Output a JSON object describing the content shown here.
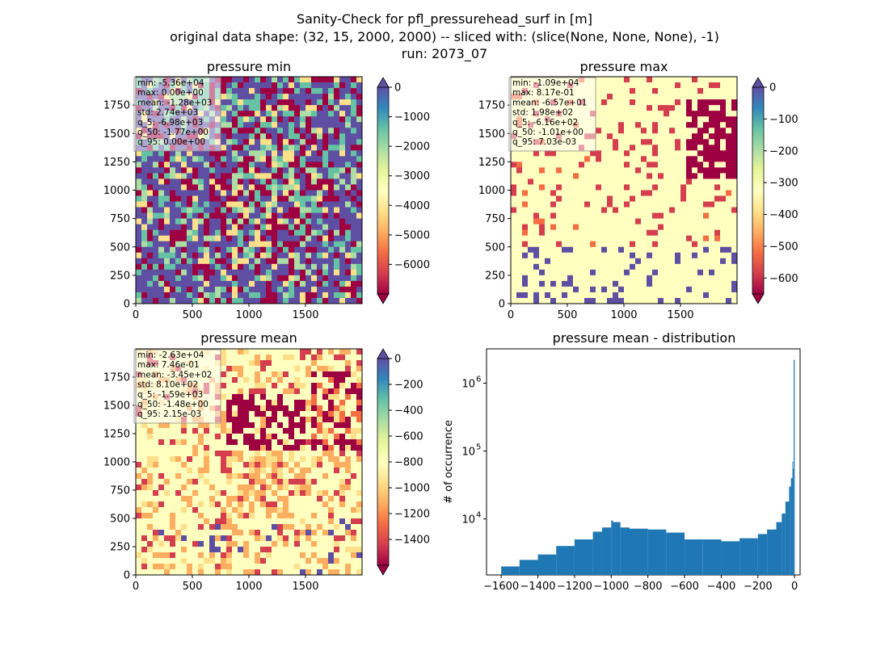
{
  "figure": {
    "suptitle_lines": [
      "Sanity-Check for pfl_pressurehead_surf in [m]",
      "original data shape: (32, 15, 2000, 2000) -- sliced with: (slice(None, None, None), -1)",
      "run: 2073_07"
    ]
  },
  "colors": {
    "spectral": [
      "#9e0142",
      "#d53e4f",
      "#f46d43",
      "#fdae61",
      "#fee08b",
      "#ffffbf",
      "#e6f598",
      "#abdda4",
      "#66c2a5",
      "#3288bd",
      "#5e4fa2"
    ],
    "hist_bar": "#1f77b4"
  },
  "chart_data": [
    {
      "type": "heatmap",
      "title": "pressure min",
      "xticks": [
        "0",
        "500",
        "1000",
        "1500"
      ],
      "yticks": [
        "0",
        "250",
        "500",
        "750",
        "1000",
        "1250",
        "1500",
        "1750"
      ],
      "xlim": [
        0,
        2000
      ],
      "ylim": [
        0,
        2000
      ],
      "colorbar": {
        "vmin": -7000,
        "vmax": 0,
        "extend": "both",
        "ticks": [
          "0",
          "−1000",
          "−2000",
          "−3000",
          "−4000",
          "−5000",
          "−6000"
        ],
        "tick_values": [
          0,
          -1000,
          -2000,
          -3000,
          -4000,
          -5000,
          -6000
        ]
      },
      "stats": [
        "min: -5.36e+04",
        "max: 0.00e+00",
        "mean: -1.28e+03",
        "std: 2.74e+03",
        "q_5: -6.98e+03",
        "q_50: -1.77e+00",
        "q_95: 0.00e+00"
      ]
    },
    {
      "type": "heatmap",
      "title": "pressure max",
      "xticks": [
        "0",
        "500",
        "1000",
        "1500"
      ],
      "yticks": [
        "0",
        "250",
        "500",
        "750",
        "1000",
        "1250",
        "1500",
        "1750"
      ],
      "xlim": [
        0,
        2000
      ],
      "ylim": [
        0,
        2000
      ],
      "colorbar": {
        "vmin": -650,
        "vmax": 0,
        "extend": "both",
        "ticks": [
          "0",
          "−100",
          "−200",
          "−300",
          "−400",
          "−500",
          "−600"
        ],
        "tick_values": [
          0,
          -100,
          -200,
          -300,
          -400,
          -500,
          -600
        ]
      },
      "stats": [
        "min: -1.09e+04",
        "max: 8.17e-01",
        "mean: -6.57e+01",
        "std: 1.98e+02",
        "q_5: -6.16e+02",
        "q_50: -1.01e+00",
        "q_95: 7.03e-03"
      ]
    },
    {
      "type": "heatmap",
      "title": "pressure mean",
      "xticks": [
        "0",
        "500",
        "1000",
        "1500"
      ],
      "yticks": [
        "0",
        "250",
        "500",
        "750",
        "1000",
        "1250",
        "1500",
        "1750"
      ],
      "xlim": [
        0,
        2000
      ],
      "ylim": [
        0,
        2000
      ],
      "colorbar": {
        "vmin": -1600,
        "vmax": 0,
        "extend": "both",
        "ticks": [
          "0",
          "−200",
          "−400",
          "−600",
          "−800",
          "−1000",
          "−1200",
          "−1400"
        ],
        "tick_values": [
          0,
          -200,
          -400,
          -600,
          -800,
          -1000,
          -1200,
          -1400
        ]
      },
      "stats": [
        "min: -2.63e+04",
        "max: 7.46e-01",
        "mean: -3.45e+02",
        "std: 8.10e+02",
        "q_5: -1.59e+03",
        "q_50: -1.48e+00",
        "q_95: 2.15e-03"
      ]
    },
    {
      "type": "bar",
      "title": "pressure mean - distribution",
      "ylabel": "# of occurrence",
      "yscale": "log",
      "xlim": [
        -1680,
        30
      ],
      "ylim": [
        1500,
        3200000
      ],
      "xticks": [
        "−1600",
        "−1400",
        "−1200",
        "−1000",
        "−800",
        "−600",
        "−400",
        "−200",
        "0"
      ],
      "xtick_values": [
        -1600,
        -1400,
        -1200,
        -1000,
        -800,
        -600,
        -400,
        -200,
        0
      ],
      "yticks": [
        "10",
        "10",
        "10"
      ],
      "ytick_exponents": [
        "4",
        "5",
        "6"
      ],
      "ytick_values": [
        10000,
        100000,
        1000000
      ],
      "bins_x": [
        -1600,
        -1500,
        -1400,
        -1300,
        -1200,
        -1100,
        -1050,
        -1000,
        -990,
        -950,
        -900,
        -800,
        -700,
        -600,
        -500,
        -400,
        -300,
        -200,
        -150,
        -100,
        -70,
        -50,
        -30,
        -20,
        -12,
        -8,
        -5,
        -3,
        0
      ],
      "bins_y": [
        2000,
        2500,
        3000,
        4000,
        5000,
        6500,
        7500,
        9500,
        9000,
        7500,
        7200,
        7000,
        6300,
        5000,
        5000,
        4700,
        5200,
        6000,
        7000,
        9000,
        12000,
        18000,
        30000,
        40000,
        70000,
        55000,
        2200000,
        2200000,
        2200000
      ]
    }
  ]
}
